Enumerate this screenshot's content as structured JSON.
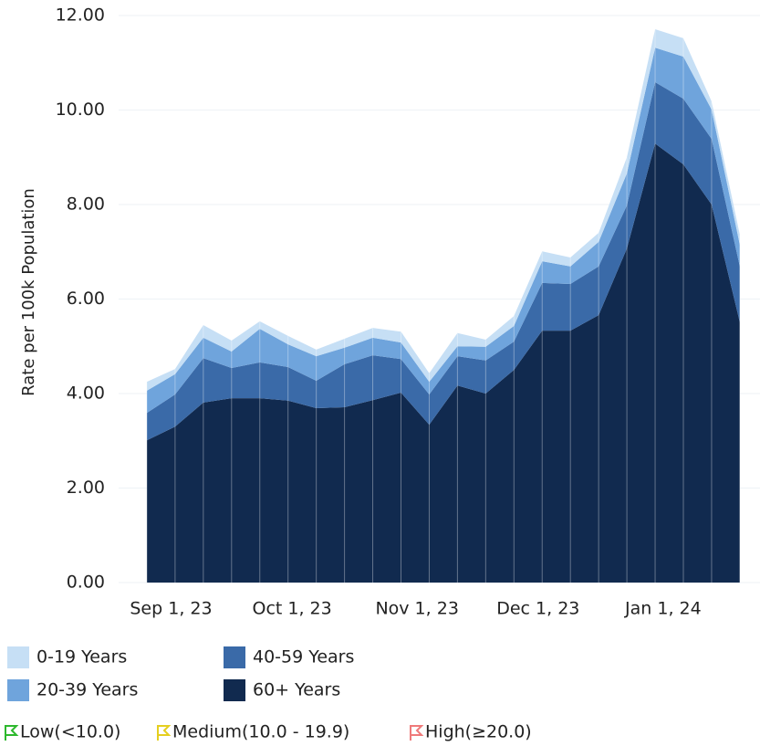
{
  "chart_data": {
    "type": "stacked_area",
    "y_label": "Rate per 100k Population",
    "x": [
      "2023-08-26",
      "2023-09-02",
      "2023-09-09",
      "2023-09-16",
      "2023-09-23",
      "2023-09-30",
      "2023-10-07",
      "2023-10-14",
      "2023-10-21",
      "2023-10-28",
      "2023-11-04",
      "2023-11-11",
      "2023-11-18",
      "2023-11-25",
      "2023-12-02",
      "2023-12-09",
      "2023-12-16",
      "2023-12-23",
      "2023-12-30",
      "2024-01-06",
      "2024-01-13",
      "2024-01-20"
    ],
    "series": [
      {
        "name": "0-19 Years",
        "color": "#c6dff5",
        "values": [
          0.19,
          0.11,
          0.27,
          0.23,
          0.16,
          0.18,
          0.14,
          0.19,
          0.21,
          0.23,
          0.18,
          0.28,
          0.15,
          0.21,
          0.21,
          0.19,
          0.19,
          0.34,
          0.39,
          0.39,
          0.17,
          0.21
        ]
      },
      {
        "name": "20-39 Years",
        "color": "#6fa4dc",
        "values": [
          0.47,
          0.43,
          0.43,
          0.35,
          0.71,
          0.48,
          0.52,
          0.35,
          0.37,
          0.35,
          0.27,
          0.21,
          0.29,
          0.33,
          0.46,
          0.37,
          0.52,
          0.68,
          0.73,
          0.89,
          0.62,
          0.46
        ]
      },
      {
        "name": "40-59 Years",
        "color": "#3a6aa8",
        "values": [
          0.58,
          0.68,
          0.94,
          0.64,
          0.76,
          0.71,
          0.58,
          0.91,
          0.95,
          0.71,
          0.64,
          0.62,
          0.7,
          0.6,
          1.01,
          0.99,
          1.03,
          0.91,
          1.3,
          1.39,
          1.39,
          1.18
        ]
      },
      {
        "name": "60+ Years",
        "color": "#112a4f",
        "values": [
          3.01,
          3.3,
          3.81,
          3.9,
          3.9,
          3.85,
          3.69,
          3.71,
          3.86,
          4.02,
          3.34,
          4.17,
          4.0,
          4.5,
          5.33,
          5.33,
          5.66,
          7.07,
          9.29,
          8.85,
          8.0,
          5.51
        ]
      }
    ],
    "xlim": [
      "2023-08-19",
      "2024-01-25"
    ],
    "xticks": [
      {
        "value": "2023-09-01",
        "label": "Sep 1, 23"
      },
      {
        "value": "2023-10-01",
        "label": "Oct 1, 23"
      },
      {
        "value": "2023-11-01",
        "label": "Nov 1, 23"
      },
      {
        "value": "2023-12-01",
        "label": "Dec 1, 23"
      },
      {
        "value": "2024-01-01",
        "label": "Jan 1, 24"
      }
    ],
    "ylim": [
      0,
      12
    ],
    "yticks": [
      {
        "value": 0,
        "label": "0.00"
      },
      {
        "value": 2,
        "label": "2.00"
      },
      {
        "value": 4,
        "label": "4.00"
      },
      {
        "value": 6,
        "label": "6.00"
      },
      {
        "value": 8,
        "label": "8.00"
      },
      {
        "value": 10,
        "label": "10.00"
      },
      {
        "value": 12,
        "label": "12.00"
      }
    ],
    "grid": true,
    "flags": [
      {
        "label": "Low(<10.0)",
        "color": "#2db82d"
      },
      {
        "label": "Medium(10.0 - 19.9)",
        "color": "#e5cf1f"
      },
      {
        "label": "High(≥20.0)",
        "color": "#ef7a7a"
      }
    ]
  }
}
